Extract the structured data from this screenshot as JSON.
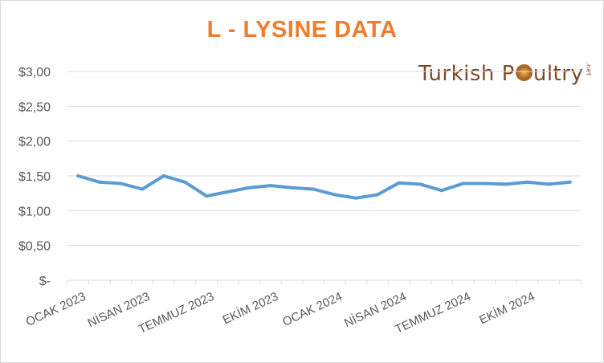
{
  "chart_data": {
    "type": "line",
    "title": "L - LYSINE DATA",
    "xlabel": "",
    "ylabel": "",
    "ylim": [
      0,
      3.0
    ],
    "y_ticks": [
      "$-",
      "$0,50",
      "$1,00",
      "$1,50",
      "$2,00",
      "$2,50",
      "$3,00"
    ],
    "y_tick_values": [
      0,
      0.5,
      1.0,
      1.5,
      2.0,
      2.5,
      3.0
    ],
    "x_tick_labels": [
      "OCAK 2023",
      "NİSAN 2023",
      "TEMMUZ 2023",
      "EKİM 2023",
      "OCAK 2024",
      "NİSAN 2024",
      "TEMMUZ 2024",
      "EKİM 2024"
    ],
    "x_tick_label_positions": [
      0,
      3,
      6,
      9,
      12,
      15,
      18,
      21
    ],
    "grid": "horizontal",
    "legend": "none",
    "line_color": "#5b9bd5",
    "title_color": "#ed7d31",
    "series": [
      {
        "values": [
          1.5,
          1.41,
          1.39,
          1.31,
          1.5,
          1.41,
          1.21,
          1.27,
          1.33,
          1.36,
          1.33,
          1.31,
          1.23,
          1.18,
          1.23,
          1.4,
          1.38,
          1.29,
          1.39,
          1.39,
          1.38,
          1.41,
          1.38,
          1.41
        ]
      }
    ]
  },
  "logo": {
    "text_before": "Turkish P",
    "text_after": "ultry",
    "suffix": ".net"
  }
}
